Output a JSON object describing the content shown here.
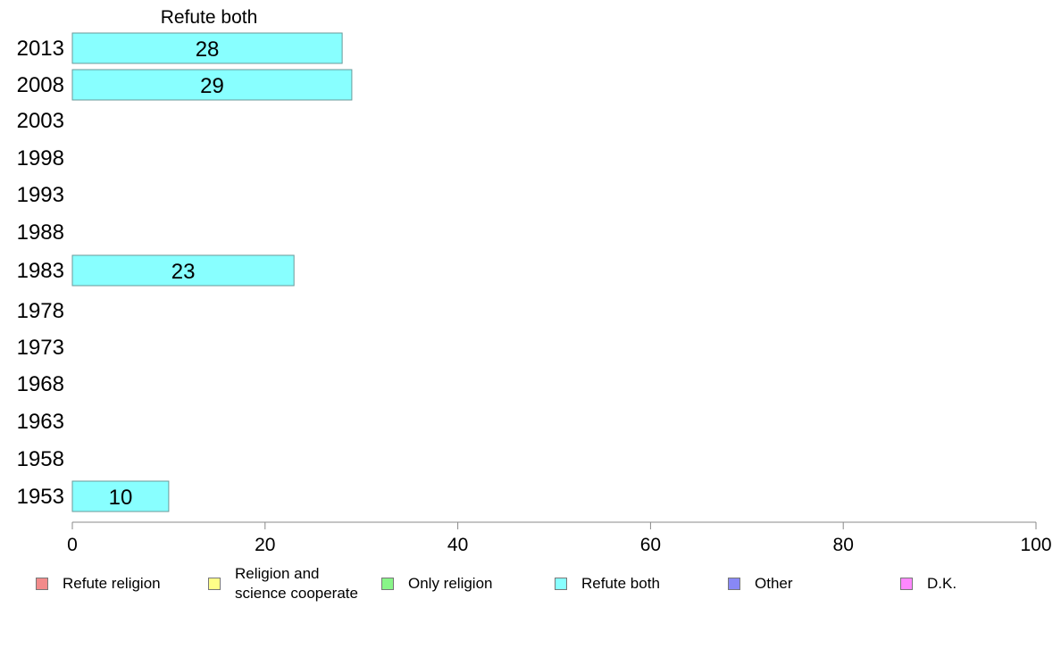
{
  "chart_data": {
    "type": "bar",
    "orientation": "horizontal",
    "title": "Refute both",
    "categories": [
      "2013",
      "2008",
      "2003",
      "1998",
      "1993",
      "1988",
      "1983",
      "1978",
      "1973",
      "1968",
      "1963",
      "1958",
      "1953"
    ],
    "series": [
      {
        "name": "Refute both",
        "values": [
          28,
          29,
          null,
          null,
          null,
          null,
          23,
          null,
          null,
          null,
          null,
          null,
          10
        ]
      }
    ],
    "xlim": [
      0,
      100
    ],
    "xticks": [
      0,
      20,
      40,
      60,
      80,
      100
    ],
    "grid": false,
    "legend_position": "bottom",
    "bar_color": "#88ffff"
  },
  "legend": {
    "items": [
      {
        "label": "Refute religion",
        "color": "#f28b8b"
      },
      {
        "label": "Religion and\nscience cooperate",
        "color": "#ffff88"
      },
      {
        "label": "Only religion",
        "color": "#88f588"
      },
      {
        "label": "Refute both",
        "color": "#88ffff"
      },
      {
        "label": "Other",
        "color": "#8888f5"
      },
      {
        "label": "D.K.",
        "color": "#ff88ff"
      }
    ]
  }
}
